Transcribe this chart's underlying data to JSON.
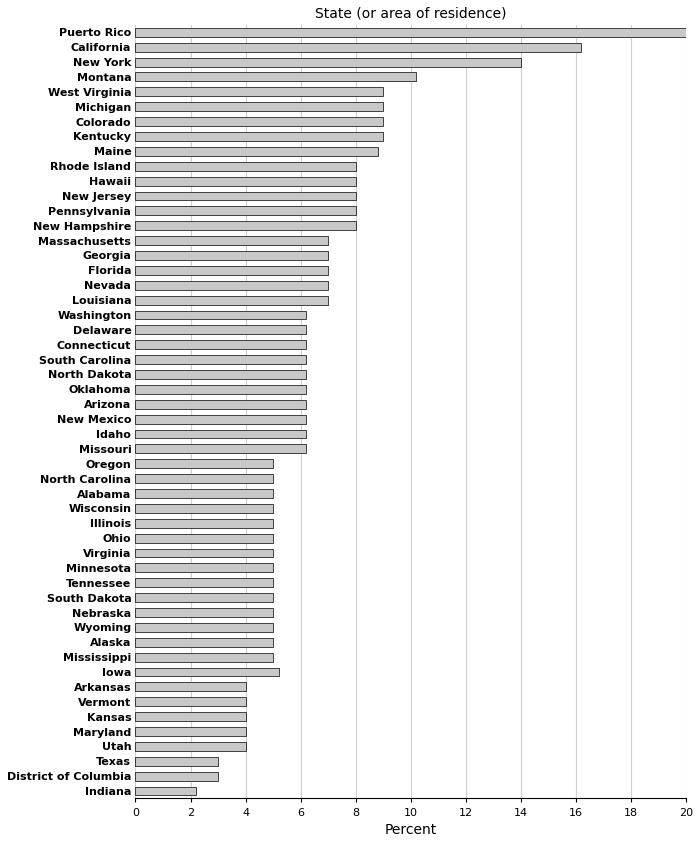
{
  "title": "State (or area of residence)",
  "xlabel": "Percent",
  "categories": [
    "Puerto Rico",
    "California",
    "New York",
    "Montana",
    "West Virginia",
    "Michigan",
    "Colorado",
    "Kentucky",
    "Maine",
    "Rhode Island",
    "Hawaii",
    "New Jersey",
    "Pennsylvania",
    "New Hampshire",
    "Massachusetts",
    "Georgia",
    "Florida",
    "Nevada",
    "Louisiana",
    "Washington",
    "Delaware",
    "Connecticut",
    "South Carolina",
    "North Dakota",
    "Oklahoma",
    "Arizona",
    "New Mexico",
    "Idaho",
    "Missouri",
    "Oregon",
    "North Carolina",
    "Alabama",
    "Wisconsin",
    "Illinois",
    "Ohio",
    "Virginia",
    "Minnesota",
    "Tennessee",
    "South Dakota",
    "Nebraska",
    "Wyoming",
    "Alaska",
    "Mississippi",
    "Iowa",
    "Arkansas",
    "Vermont",
    "Kansas",
    "Maryland",
    "Utah",
    "Texas",
    "District of Columbia",
    "Indiana"
  ],
  "values": [
    20.0,
    16.2,
    14.0,
    10.2,
    9.0,
    9.0,
    9.0,
    9.0,
    8.8,
    8.0,
    8.0,
    8.0,
    8.0,
    8.0,
    7.0,
    7.0,
    7.0,
    7.0,
    7.0,
    6.2,
    6.2,
    6.2,
    6.2,
    6.2,
    6.2,
    6.2,
    6.2,
    6.2,
    6.2,
    5.0,
    5.0,
    5.0,
    5.0,
    5.0,
    5.0,
    5.0,
    5.0,
    5.0,
    5.0,
    5.0,
    5.0,
    5.0,
    5.0,
    5.2,
    4.0,
    4.0,
    4.0,
    4.0,
    4.0,
    3.0,
    3.0,
    2.2
  ],
  "bar_color": "#c8c8c8",
  "bar_edge_color": "#000000",
  "bar_linewidth": 0.5,
  "xlim": [
    0,
    20
  ],
  "xticks": [
    0,
    2,
    4,
    6,
    8,
    10,
    12,
    14,
    16,
    18,
    20
  ],
  "grid_color": "#d0d0d0",
  "bg_color": "#ffffff",
  "title_fontsize": 10,
  "xlabel_fontsize": 10,
  "label_fontsize": 8,
  "label_fontweight": "bold"
}
